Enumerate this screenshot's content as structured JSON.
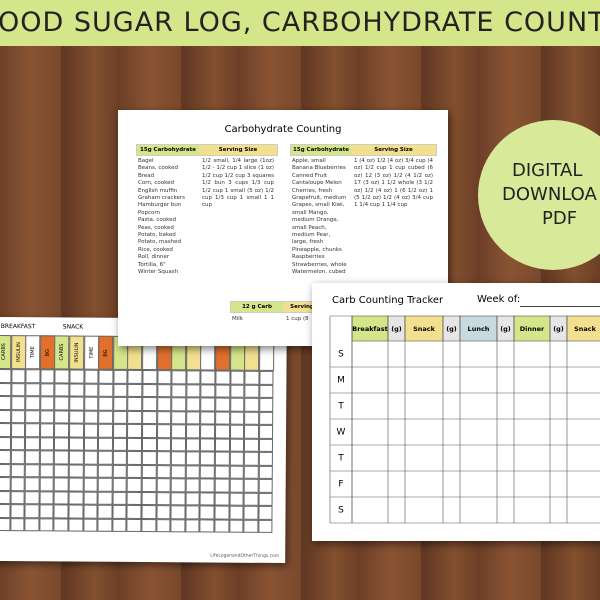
{
  "banner": {
    "title": "OOD SUGAR LOG, CARBOHYDRATE COUNT"
  },
  "badge": {
    "lines": [
      "DIGITAL",
      "DOWNLOA",
      "PDF"
    ]
  },
  "bg_log": {
    "meals": [
      "BREAKFAST",
      "SNACK"
    ],
    "columns": [
      "CARBS",
      "INSULIN",
      "TIME",
      "BG",
      "CARBS",
      "INSULIN",
      "TIME",
      "BG"
    ],
    "footer": "LifeLoganandOtherThings.com"
  },
  "carb_sheet": {
    "title": "Carbohydrate Counting",
    "tables": [
      {
        "header": [
          "15g Carbohydrate",
          "Serving Size"
        ],
        "foods": [
          "Bagel",
          "Beans, cooked",
          "Bread",
          "Corn, cooked",
          "English muffin",
          "Graham crackers",
          "Hamburger bun",
          "Popcorn",
          "Pasta, cooked",
          "Peas, cooked",
          "Potato, baked",
          "Potato, mashed",
          "Rice, cooked",
          "Roll, dinner",
          "Tortilla, 6\"",
          "Winter Squash"
        ],
        "servings": "1/2 small, 1/4 large (1oz) 1/2 - 1/2 cup 1 slice (1 oz) 1/2 cup 1/2 cup 3 squares 1/2 bun 3 cups 1/3 cup 1/2 cup 1 small (5 oz) 1/2 cup 1/3 cup 1 small 1 1 cup"
      },
      {
        "header": [
          "15g Carbohydrate",
          "Serving Size"
        ],
        "foods": [
          "Apple, small",
          "Banana Blueberries",
          "Canned Fruit",
          "Cantaloupe Melon",
          "Cherries, fresh",
          "Grapefruit, medium",
          "Grapes, small Kiwi,",
          "small Mango,",
          "medium Orange,",
          "small Peach,",
          "medium Pear,",
          "large, fresh",
          "Pineapple, chunks",
          "Raspberries",
          "Strawberries, whole",
          "Watermelon, cubed"
        ],
        "servings": "1 (4 oz) 1/2 (4 oz) 3/4 cup (4 oz) 1/2 cup 1 cup cubed (6 oz) 12 (3 oz) 1/2 (4 1/2 oz) 17 (3 oz) 1 1/2 whole (3 1/2 oz) 1/2 (4 oz) 1 (6 1/2 oz) 1 (5 1/2 oz) 1/2 (4 oz) 3/4 cup 1 1/4 cup 1 1/4 cup"
      }
    ],
    "milk": {
      "header": [
        "12 g Carb",
        "Serving"
      ],
      "row": [
        "Milk",
        "1 cup (8"
      ]
    }
  },
  "tracker": {
    "title": "Carb Counting Tracker",
    "week_label": "Week of:",
    "columns": [
      "Breakfast",
      "(g)",
      "Snack",
      "(g)",
      "Lunch",
      "(g)",
      "Dinner",
      "(g)",
      "Snack"
    ],
    "days": [
      "S",
      "M",
      "T",
      "W",
      "T",
      "F",
      "S"
    ]
  }
}
